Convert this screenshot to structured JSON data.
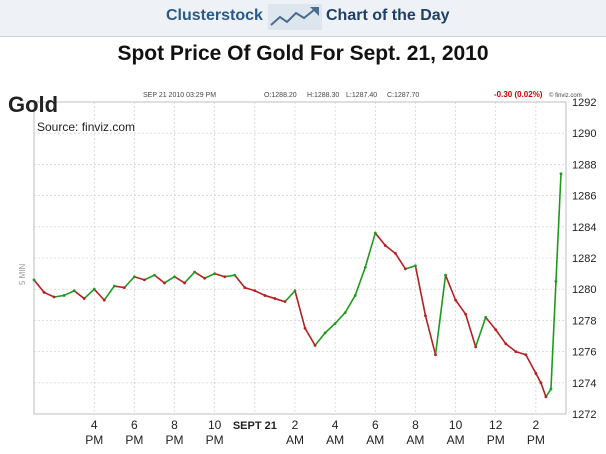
{
  "header": {
    "brand": "Clusterstock",
    "subtitle": "Chart of the Day"
  },
  "page_title": "Spot Price Of Gold For Sept. 21, 2010",
  "chart_info": {
    "symbol": "Gold",
    "timestamp": "SEP 21 2010 03:29 PM",
    "open": "O:1288.20",
    "high": "H:1288.30",
    "low": "L:1287.40",
    "close": "C:1287.70",
    "change": "-0.30 (0.02%)",
    "watermark": "© finviz.com",
    "source": "Source: finviz.com",
    "interval": "5 MIN"
  },
  "colors": {
    "up": "#1f9a1f",
    "down": "#b52020",
    "grid": "#c8c8c8",
    "change": "#cc0000"
  },
  "chart_data": {
    "type": "line",
    "title": "Spot Price Of Gold For Sept. 21, 2010",
    "ylim": [
      1272,
      1292
    ],
    "y_ticks": [
      1272,
      1274,
      1276,
      1278,
      1280,
      1282,
      1284,
      1286,
      1288,
      1290,
      1292
    ],
    "x_tick_labels": [
      {
        "l1": "4",
        "l2": "PM"
      },
      {
        "l1": "6",
        "l2": "PM"
      },
      {
        "l1": "8",
        "l2": "PM"
      },
      {
        "l1": "10",
        "l2": "PM"
      },
      {
        "l1": "SEPT 21",
        "l2": ""
      },
      {
        "l1": "2",
        "l2": "AM"
      },
      {
        "l1": "4",
        "l2": "AM"
      },
      {
        "l1": "6",
        "l2": "AM"
      },
      {
        "l1": "8",
        "l2": "AM"
      },
      {
        "l1": "10",
        "l2": "AM"
      },
      {
        "l1": "12",
        "l2": "PM"
      },
      {
        "l1": "2",
        "l2": "PM"
      }
    ],
    "x_tick_hours": [
      0,
      2,
      4,
      6,
      8,
      10,
      12,
      14,
      16,
      18,
      20,
      22
    ],
    "x_range_hours": [
      -3,
      23.5
    ],
    "series": [
      {
        "x": [
          -3,
          -2.5,
          -2,
          -1.5,
          -1,
          -0.5,
          0,
          0.5,
          1,
          1.5,
          2,
          2.5,
          3,
          3.5,
          4,
          4.5,
          5,
          5.5,
          6,
          6.5,
          7,
          7.5,
          8,
          8.5,
          9,
          9.5,
          10,
          10.5,
          11,
          11.5,
          12,
          12.5,
          13,
          13.5,
          14,
          14.5,
          15,
          15.5,
          16,
          16.5,
          17,
          17.5,
          18,
          18.5,
          19,
          19.5,
          20,
          20.5,
          21,
          21.5,
          22,
          22.25,
          22.5,
          22.75,
          23,
          23.25
        ],
        "values": [
          1280.6,
          1279.8,
          1279.5,
          1279.6,
          1279.9,
          1279.4,
          1280.0,
          1279.3,
          1280.2,
          1280.1,
          1280.8,
          1280.6,
          1280.9,
          1280.4,
          1280.8,
          1280.4,
          1281.1,
          1280.7,
          1281.0,
          1280.8,
          1280.9,
          1280.1,
          1279.9,
          1279.6,
          1279.4,
          1279.2,
          1279.9,
          1277.5,
          1276.4,
          1277.2,
          1277.8,
          1278.5,
          1279.6,
          1281.4,
          1283.6,
          1282.8,
          1282.3,
          1281.3,
          1281.5,
          1278.3,
          1275.8,
          1280.9,
          1279.3,
          1278.4,
          1276.3,
          1278.2,
          1277.4,
          1276.5,
          1276.0,
          1275.8,
          1274.6,
          1274.0,
          1273.1,
          1273.6,
          1280.5,
          1287.4
        ]
      }
    ]
  }
}
